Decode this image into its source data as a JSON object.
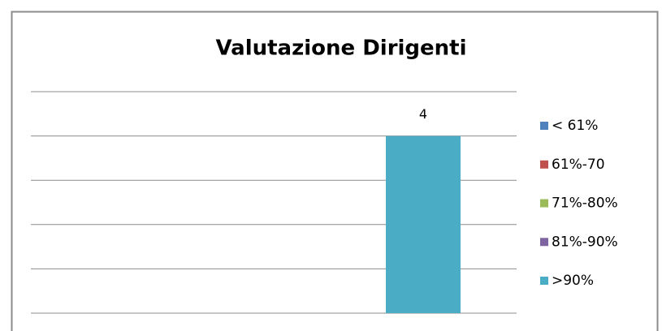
{
  "chart_data": {
    "type": "bar",
    "title": "Valutazione Dirigenti",
    "categories": [
      null
    ],
    "series": [
      {
        "name": "< 61%",
        "color": "#4f81bd",
        "values": [
          null
        ]
      },
      {
        "name": "61%-70",
        "color": "#c0504d",
        "values": [
          null
        ]
      },
      {
        "name": "71%-80%",
        "color": "#9bbb59",
        "values": [
          null
        ]
      },
      {
        "name": "81%-90%",
        "color": "#8064a2",
        "values": [
          null
        ]
      },
      {
        "name": ">90%",
        "color": "#4bacc6",
        "values": [
          4
        ]
      }
    ],
    "ylim": [
      0,
      5
    ],
    "yticks": [
      0,
      1,
      2,
      3,
      4,
      5
    ],
    "grid": true,
    "legend": "right"
  }
}
